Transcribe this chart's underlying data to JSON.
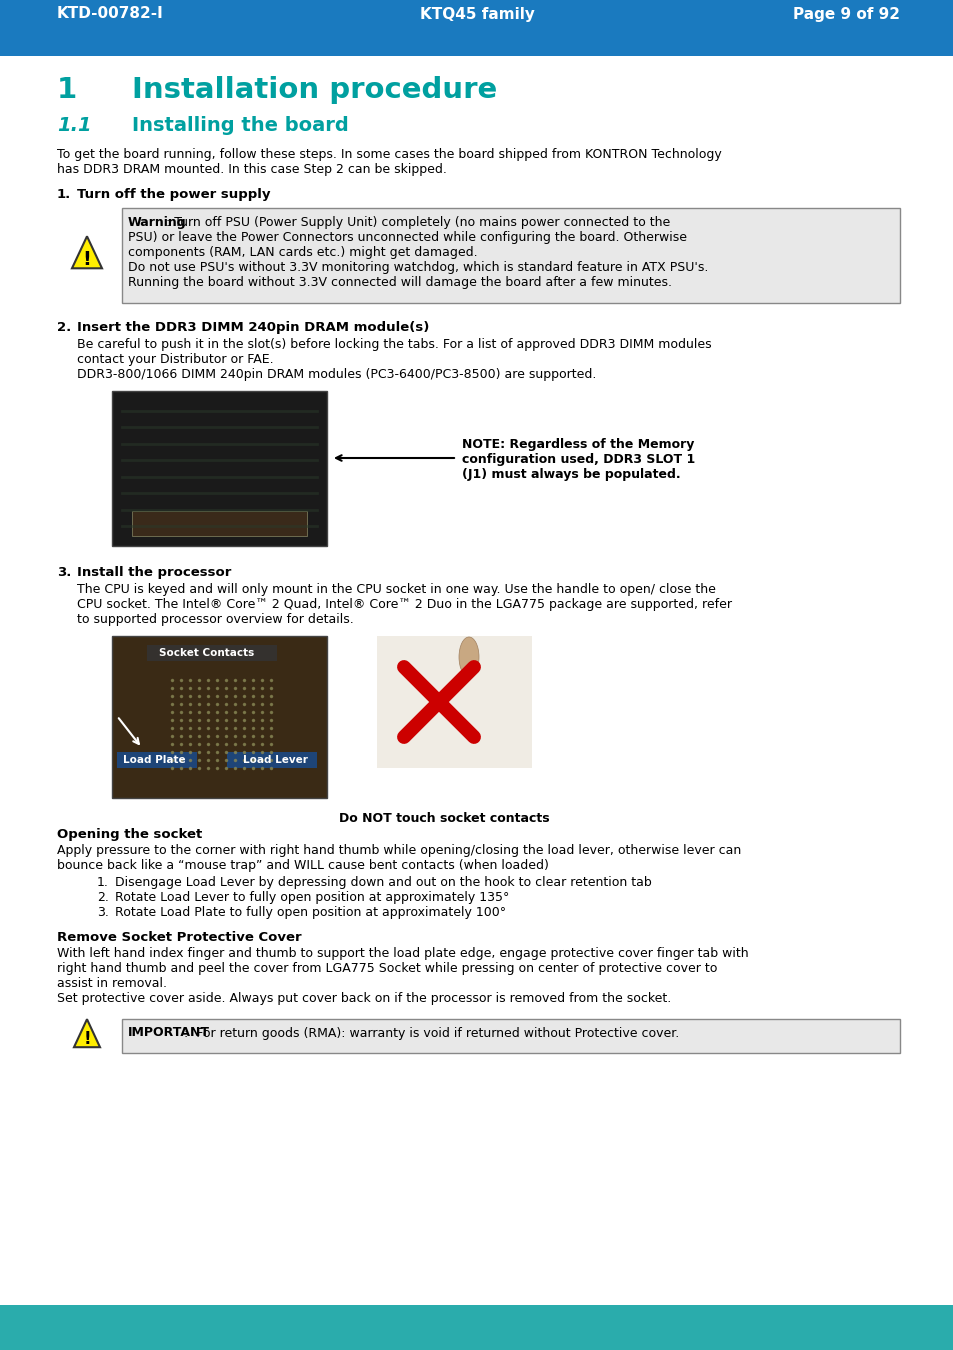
{
  "header_bg_color": "#1a7abf",
  "header_text_color": "#ffffff",
  "header_left": "KTD-00782-I",
  "header_center": "KTQ45 family",
  "header_right": "Page 9 of 92",
  "footer_bg_color": "#2aacac",
  "page_bg": "#ffffff",
  "teal_color": "#00a0a0",
  "title1_num": "1",
  "title1_text": "Installation procedure",
  "title2_num": "1.1",
  "title2_text": "Installing the board",
  "intro_text": "To get the board running, follow these steps. In some cases the board shipped from KONTRON Technology\nhas DDR3 DRAM mounted. In this case Step 2 can be skipped.",
  "step1_label": "1.",
  "step1_title": "Turn off the power supply",
  "warning_line1_bold": "Warning",
  "warning_line1_rest": ": Turn off PSU (Power Supply Unit) completely (no mains power connected to the\nPSU) or leave the Power Connectors unconnected while configuring the board. Otherwise\ncomponents (RAM, LAN cards etc.) might get damaged.",
  "warning_line2": "Do not use PSU's without 3.3V monitoring watchdog, which is standard feature in ATX PSU's.",
  "warning_line3": "Running the board without 3.3V connected will damage the board after a few minutes.",
  "step2_label": "2.",
  "step2_title": "Insert the DDR3 DIMM 240pin DRAM module(s)",
  "step2_line1": "Be careful to push it in the slot(s) before locking the tabs. For a list of approved DDR3 DIMM modules",
  "step2_line2": "contact your Distributor or FAE.",
  "step2_line3": "DDR3-800/1066 DIMM 240pin DRAM modules (PC3-6400/PC3-8500) are supported.",
  "note_lines": [
    "NOTE: Regardless of the Memory",
    "configuration used, DDR3 SLOT 1",
    "(J1) must always be populated."
  ],
  "step3_label": "3.",
  "step3_title": "Install the processor",
  "step3_line1": "The CPU is keyed and will only mount in the CPU socket in one way. Use the handle to open/ close the",
  "step3_line2": "CPU socket. The Intel® Core™ 2 Quad, Intel® Core™ 2 Duo in the LGA775 package are supported, refer",
  "step3_line3": "to supported processor overview for details.",
  "socket_label1": "Socket Contacts",
  "socket_label2": "Load Lever",
  "socket_label3": "Load Plate",
  "do_not_touch_text": "Do NOT touch socket contacts",
  "opening_socket_title": "Opening the socket",
  "opening_socket_line1": "Apply pressure to the corner with right hand thumb while opening/closing the load lever, otherwise lever can",
  "opening_socket_line2": "bounce back like a “mouse trap” and WILL cause bent contacts (when loaded)",
  "ol_items": [
    "Disengage Load Lever by depressing down and out on the hook to clear retention tab",
    "Rotate Load Lever to fully open position at approximately 135°",
    "Rotate Load Plate to fully open position at approximately 100°"
  ],
  "remove_socket_title": "Remove Socket Protective Cover",
  "remove_socket_line1": "With left hand index finger and thumb to support the load plate edge, engage protective cover finger tab with",
  "remove_socket_line2": "right hand thumb and peel the cover from LGA775 Socket while pressing on center of protective cover to",
  "remove_socket_line3": "assist in removal.",
  "remove_socket_line4": "Set protective cover aside. Always put cover back on if the processor is removed from the socket.",
  "important_bold": "IMPORTANT",
  "important_rest": ":  For return goods (RMA): warranty is void if returned without Protective cover."
}
